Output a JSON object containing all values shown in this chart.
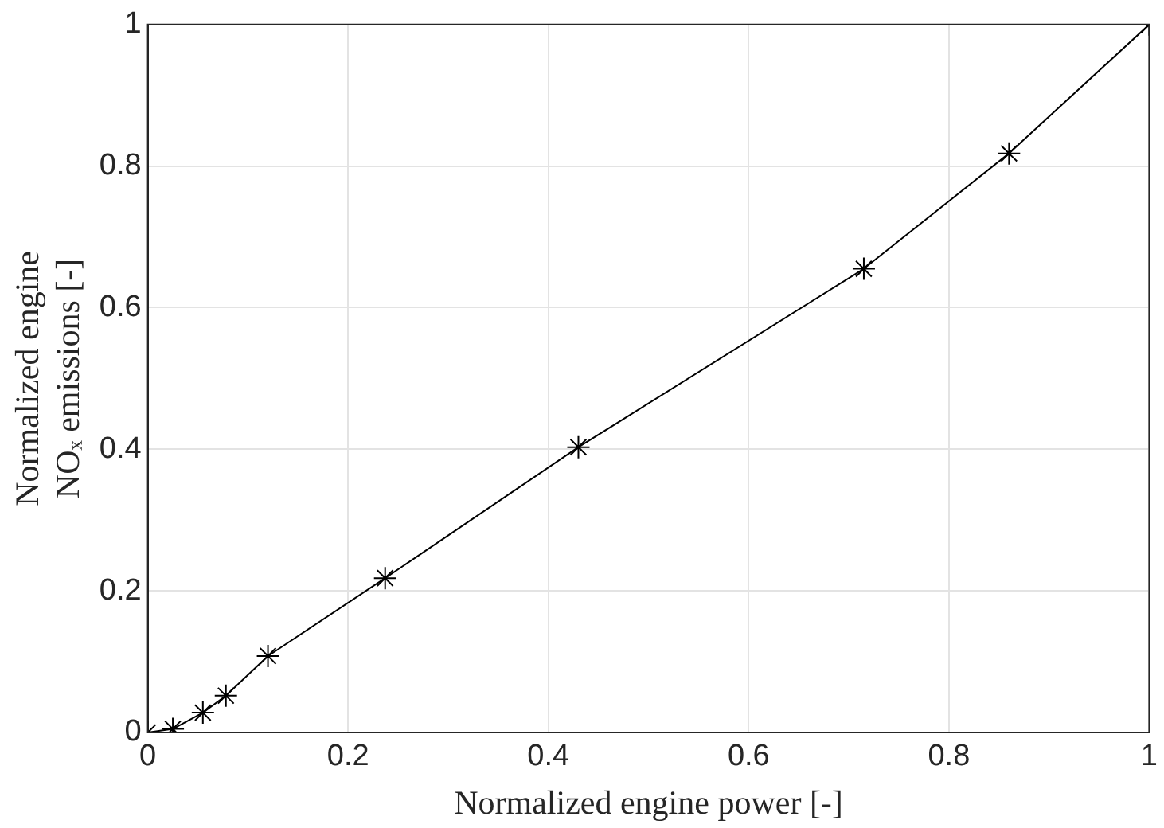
{
  "chart_data": {
    "type": "line",
    "xlabel": "Normalized engine power [-]",
    "ylabel": "Normalized engine\nNOₓ emissions [-]",
    "x": [
      0,
      0.025,
      0.055,
      0.078,
      0.12,
      0.237,
      0.43,
      0.715,
      0.86,
      1
    ],
    "series": [
      {
        "color": "#000000",
        "values": [
          0,
          0.005,
          0.028,
          0.052,
          0.108,
          0.218,
          0.403,
          0.655,
          0.818,
          1
        ]
      }
    ],
    "xlim": [
      0,
      1
    ],
    "xticks": [
      0,
      0.2,
      0.4,
      0.6,
      0.8,
      1
    ],
    "ylim": [
      0,
      1
    ],
    "yticks": [
      0,
      0.2,
      0.4,
      0.6,
      0.8,
      1
    ],
    "grid": true,
    "marker": "cross",
    "line_style": "solid"
  }
}
